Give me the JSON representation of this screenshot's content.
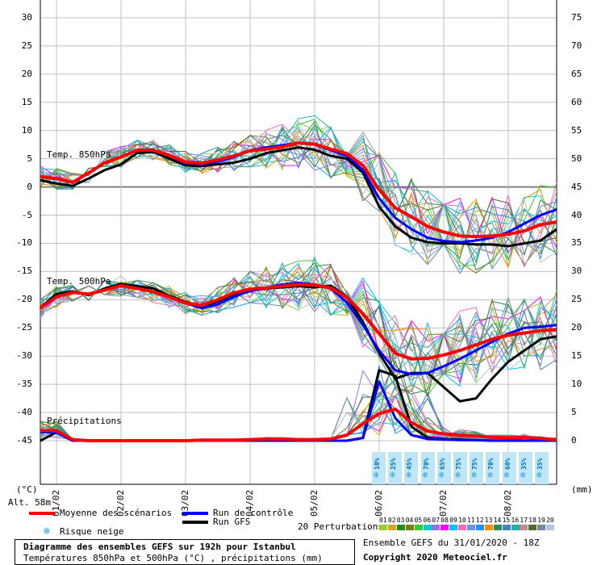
{
  "chart_data": {
    "type": "line",
    "title": "Diagramme des ensembles GEFS sur 192h pour Istanbul",
    "subtitle": "Températures 850hPa et 500hPa (°C) , précipitations (mm)",
    "xlabel": "",
    "ylabel_left": "(°C)",
    "ylabel_right": "(mm)",
    "y_left_ticks": [
      "30",
      "25",
      "20",
      "15",
      "10",
      "5",
      "0",
      "-5",
      "-10",
      "-15",
      "-20",
      "-25",
      "-30",
      "-35",
      "-40",
      "-45"
    ],
    "y_right_ticks": [
      "75",
      "70",
      "65",
      "60",
      "55",
      "50",
      "45",
      "40",
      "35",
      "30",
      "25",
      "20",
      "15",
      "10",
      "5",
      "0"
    ],
    "ylim_left": [
      -45,
      30
    ],
    "ylim_right": [
      0,
      75
    ],
    "x_ticks": [
      "01/02",
      "02/02",
      "03/02",
      "04/02",
      "05/02",
      "06/02",
      "07/02",
      "08/02"
    ],
    "x_hours": [
      0,
      6,
      12,
      18,
      24,
      30,
      36,
      42,
      48,
      54,
      60,
      66,
      72,
      78,
      84,
      90,
      96,
      102,
      108,
      114,
      120,
      126,
      132,
      138,
      144,
      150,
      156,
      162,
      168,
      174,
      180,
      186,
      192
    ],
    "altitude": "Alt. 58m",
    "sections": [
      "Temp. 850hPa",
      "Temp. 500hPa",
      "Précipitations"
    ],
    "series": [
      {
        "name": "Moyenne des scénarios",
        "group": "850hPa",
        "values": [
          1.8,
          1.5,
          0.8,
          2.5,
          4.3,
          5.3,
          6.5,
          6.5,
          5.6,
          4.4,
          4.2,
          4.8,
          5.5,
          6.4,
          6.7,
          7.1,
          7.8,
          7.6,
          6.7,
          5.9,
          3.8,
          -0.5,
          -3.7,
          -5.3,
          -7.0,
          -8.0,
          -8.7,
          -8.8,
          -8.7,
          -8.4,
          -7.8,
          -6.7,
          -6.2
        ]
      },
      {
        "name": "Run de contrôle",
        "group": "850hPa",
        "values": [
          1.8,
          1.4,
          0.8,
          2.5,
          4.3,
          5.3,
          6.5,
          6.5,
          5.5,
          4.2,
          4.0,
          4.5,
          5.3,
          6.5,
          7.0,
          7.4,
          7.8,
          7.5,
          6.5,
          5.5,
          3.0,
          -2.0,
          -5.5,
          -7.5,
          -9.0,
          -9.6,
          -9.8,
          -9.5,
          -9.0,
          -8.0,
          -6.5,
          -5.0,
          -4.0
        ]
      },
      {
        "name": "Run GFS",
        "group": "850hPa",
        "values": [
          1.2,
          0.6,
          0.2,
          1.5,
          3.0,
          4.0,
          6.0,
          6.2,
          5.0,
          3.8,
          3.7,
          4.0,
          4.3,
          5.0,
          6.0,
          6.5,
          7.0,
          6.6,
          5.5,
          5.0,
          2.5,
          -3.5,
          -7.0,
          -9.0,
          -9.8,
          -10.0,
          -10.0,
          -10.2,
          -10.2,
          -10.5,
          -10.0,
          -9.5,
          -7.5
        ]
      },
      {
        "name": "Moyenne des scénarios",
        "group": "500hPa",
        "values": [
          -21.5,
          -19.5,
          -18.7,
          -19.0,
          -18.3,
          -17.5,
          -18.0,
          -18.6,
          -19.5,
          -20.6,
          -21.0,
          -20.0,
          -18.8,
          -18.1,
          -17.9,
          -17.6,
          -17.3,
          -17.4,
          -17.9,
          -19.6,
          -22.5,
          -26.0,
          -29.5,
          -30.5,
          -30.4,
          -29.8,
          -29.0,
          -28.0,
          -27.0,
          -26.3,
          -25.9,
          -25.5,
          -25.3
        ]
      },
      {
        "name": "Run de contrôle",
        "group": "500hPa",
        "values": [
          -21.5,
          -19.5,
          -18.7,
          -19.0,
          -18.3,
          -17.5,
          -18.0,
          -18.6,
          -19.5,
          -20.6,
          -21.5,
          -20.8,
          -19.5,
          -18.4,
          -17.9,
          -17.3,
          -17.0,
          -17.3,
          -18.0,
          -20.5,
          -24.5,
          -29.0,
          -32.5,
          -33.2,
          -33.0,
          -31.8,
          -30.5,
          -29.0,
          -27.5,
          -26.0,
          -25.0,
          -24.8,
          -24.5
        ]
      },
      {
        "name": "Run GFS",
        "group": "500hPa",
        "values": [
          -21.5,
          -19.0,
          -18.5,
          -19.2,
          -18.0,
          -17.2,
          -17.6,
          -18.0,
          -19.3,
          -20.4,
          -21.2,
          -20.3,
          -19.0,
          -18.2,
          -18.0,
          -17.8,
          -17.6,
          -17.8,
          -17.5,
          -19.5,
          -24.0,
          -29.5,
          -34.0,
          -33.0,
          -33.0,
          -35.5,
          -38.0,
          -37.5,
          -34.0,
          -31.0,
          -29.0,
          -27.0,
          -26.5
        ]
      },
      {
        "name": "Moyenne des scénarios",
        "group": "Précipitations",
        "values": [
          1.8,
          1.8,
          0.2,
          0,
          0,
          0,
          0,
          0,
          0,
          0,
          0.1,
          0.1,
          0.1,
          0.2,
          0.3,
          0.3,
          0.2,
          0.2,
          0.3,
          1.0,
          3.0,
          4.8,
          5.6,
          3.2,
          1.7,
          1.2,
          1.0,
          0.8,
          0.6,
          0.5,
          0.6,
          0.4,
          0.2
        ]
      },
      {
        "name": "Run de contrôle",
        "group": "Précipitations",
        "values": [
          1.5,
          1.5,
          0,
          0,
          0,
          0,
          0,
          0,
          0,
          0,
          0,
          0,
          0,
          0,
          0,
          0,
          0,
          0,
          0,
          0,
          0.5,
          10.5,
          4.0,
          1.0,
          0.3,
          0.2,
          0.1,
          0.1,
          0,
          0,
          0,
          0,
          0
        ]
      },
      {
        "name": "Run GFS",
        "group": "Précipitations",
        "values": [
          0,
          1.5,
          0,
          0,
          0,
          0,
          0,
          0,
          0,
          0,
          0,
          0,
          0,
          0,
          0,
          0,
          0,
          0,
          0,
          0,
          0.5,
          12.5,
          11.5,
          2.5,
          0.5,
          0.3,
          0.2,
          0.1,
          0,
          0,
          0,
          0,
          0
        ]
      }
    ],
    "snow_risk": {
      "label": "Risque neige",
      "values": [
        "10%",
        "25%",
        "45%",
        "70%",
        "65%",
        "75%",
        "75%",
        "70%",
        "60%",
        "35%",
        "35%"
      ]
    }
  },
  "legend": {
    "mean": "Moyenne des scénarios",
    "control": "Run de contrôle",
    "gfs": "Run GFS",
    "snow": "Risque neige",
    "perturbations": "20 Perturbations",
    "pert_ids": [
      "01",
      "02",
      "03",
      "04",
      "05",
      "06",
      "07",
      "08",
      "09",
      "10",
      "11",
      "12",
      "13",
      "14",
      "15",
      "16",
      "17",
      "18",
      "19",
      "20"
    ],
    "pert_colors": [
      "#9acd32",
      "#daa520",
      "#228b22",
      "#808000",
      "#32cd32",
      "#00ced1",
      "#9370db",
      "#ff00ff",
      "#00bfff",
      "#ff69b4",
      "#6495ed",
      "#1e90ff",
      "#ff8c00",
      "#2e8b57",
      "#4682b4",
      "#20b2aa",
      "#bc8f8f",
      "#556b2f",
      "#778899",
      "#b0c4de"
    ]
  },
  "info": {
    "title": "Diagramme des ensembles GEFS sur 192h pour Istanbul",
    "subtitle": "Températures 850hPa et 500hPa (°C) , précipitations (mm)",
    "run": "Ensemble GEFS du 31/01/2020 - 18Z",
    "copyright": "Copyright 2020 Meteociel.fr"
  },
  "colors": {
    "mean": "#ff0000",
    "control": "#0000ff",
    "gfs": "#000000",
    "grid": "#c0c0c0",
    "zero": "#808080"
  }
}
